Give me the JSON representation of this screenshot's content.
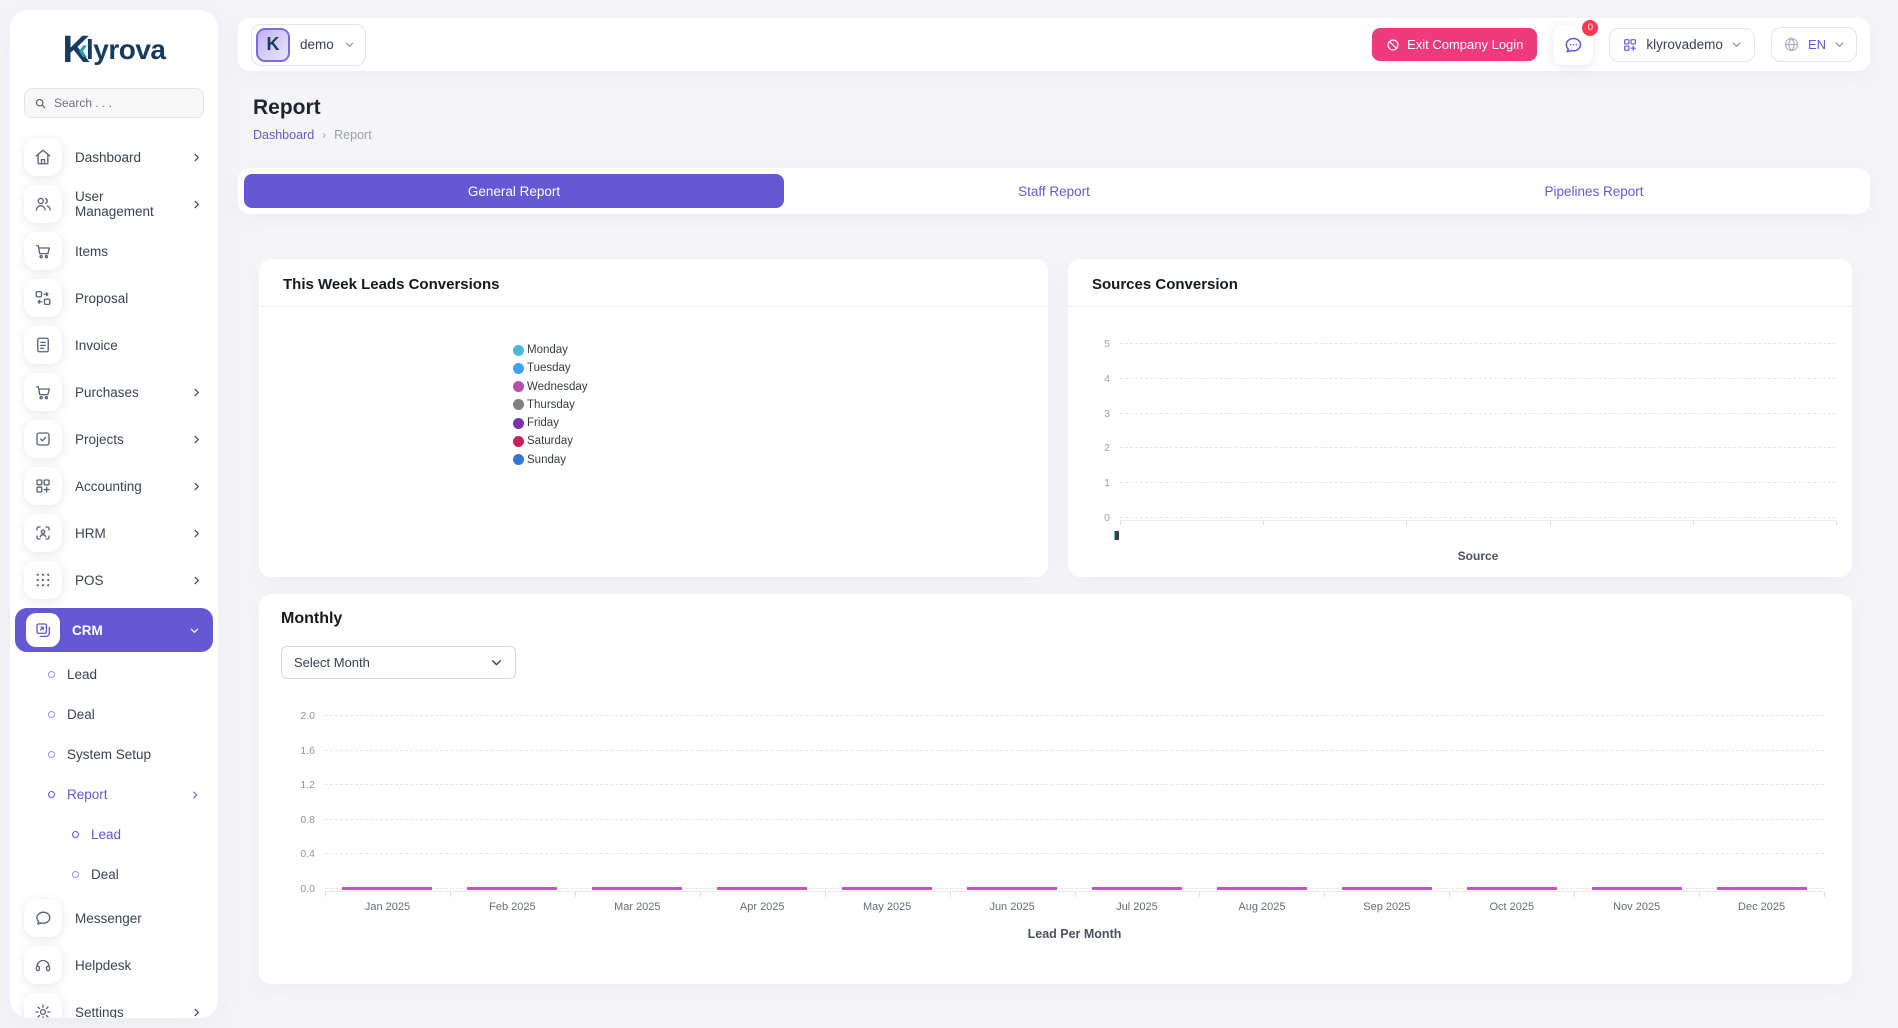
{
  "brand": {
    "name": "Klyrova",
    "mark": "K",
    "accent_glyph": "‹",
    "rest": "lyrova"
  },
  "search": {
    "placeholder": "Search . . ."
  },
  "sidebar": {
    "items": [
      {
        "label": "Dashboard",
        "icon": "home-icon",
        "chevron": true
      },
      {
        "label": "User Management",
        "icon": "users-icon",
        "chevron": true
      },
      {
        "label": "Items",
        "icon": "cart-icon",
        "chevron": false
      },
      {
        "label": "Proposal",
        "icon": "proposal-icon",
        "chevron": false
      },
      {
        "label": "Invoice",
        "icon": "invoice-icon",
        "chevron": false
      },
      {
        "label": "Purchases",
        "icon": "cart-icon",
        "chevron": true
      },
      {
        "label": "Projects",
        "icon": "check-square-icon",
        "chevron": true
      },
      {
        "label": "Accounting",
        "icon": "grid-plus-icon",
        "chevron": true
      },
      {
        "label": "HRM",
        "icon": "scan-user-icon",
        "chevron": true
      },
      {
        "label": "POS",
        "icon": "dots-grid-icon",
        "chevron": true
      },
      {
        "label": "CRM",
        "icon": "crm-icon",
        "chevron": "down",
        "active": true
      }
    ],
    "crm_children": [
      {
        "label": "Lead",
        "active": false
      },
      {
        "label": "Deal",
        "active": false
      },
      {
        "label": "System Setup",
        "active": false
      },
      {
        "label": "Report",
        "active": true,
        "chevron": true
      }
    ],
    "report_children": [
      {
        "label": "Lead",
        "active": true
      },
      {
        "label": "Deal",
        "active": false
      }
    ],
    "bottom_items": [
      {
        "label": "Messenger",
        "icon": "chat-icon"
      },
      {
        "label": "Helpdesk",
        "icon": "headset-icon"
      },
      {
        "label": "Settings",
        "icon": "gear-icon",
        "chevron": true
      }
    ]
  },
  "header": {
    "company_name": "demo",
    "company_avatar_letter": "K",
    "exit_button_label": "Exit Company Login",
    "notification_badge": "0",
    "username": "klyrovademo",
    "language": "EN"
  },
  "page": {
    "title": "Report",
    "breadcrumb_home": "Dashboard",
    "breadcrumb_sep": "›",
    "breadcrumb_current": "Report"
  },
  "tabs": {
    "general": "General Report",
    "staff": "Staff Report",
    "pipelines": "Pipelines Report"
  },
  "cards": {
    "week": {
      "title": "This Week Leads Conversions"
    },
    "sources": {
      "title": "Sources Conversion"
    },
    "monthly": {
      "title": "Monthly",
      "select_value": "Select Month"
    }
  },
  "colors": {
    "primary": "#6458d4",
    "danger_pink": "#ef3a7c",
    "badge_red": "#fc3a52",
    "bar_magenta": "#c355be"
  },
  "chart_data": [
    {
      "id": "this-week-leads-conversions",
      "type": "pie",
      "title": "This Week Leads Conversions",
      "labels": [
        "Monday",
        "Tuesday",
        "Wednesday",
        "Thursday",
        "Friday",
        "Saturday",
        "Sunday"
      ],
      "values": [
        0,
        0,
        0,
        0,
        0,
        0,
        0
      ],
      "colors": [
        "#4fb6d6",
        "#3da2f4",
        "#b84fae",
        "#7f7f7f",
        "#7c33a8",
        "#c42160",
        "#3077d4"
      ],
      "legend_position": "center"
    },
    {
      "id": "sources-conversion",
      "type": "bar",
      "title": "Sources Conversion",
      "xlabel": "Source",
      "ylabel": "",
      "ylim": [
        0,
        5
      ],
      "yticks": [
        "5",
        "4",
        "3",
        "2",
        "1",
        "0"
      ],
      "x_segments": 5,
      "x_tick_glyph": "▮",
      "grid": "dashed-horizontal",
      "categories": [],
      "values": []
    },
    {
      "id": "lead-per-month",
      "type": "bar",
      "title": "Monthly",
      "xlabel": "Lead Per Month",
      "ylabel": "",
      "ylim": [
        0,
        2
      ],
      "yticks": [
        "2.0",
        "1.6",
        "1.2",
        "0.8",
        "0.4",
        "0.0"
      ],
      "categories": [
        "Jan 2025",
        "Feb 2025",
        "Mar 2025",
        "Apr 2025",
        "May 2025",
        "Jun 2025",
        "Jul 2025",
        "Aug 2025",
        "Sep 2025",
        "Oct 2025",
        "Nov 2025",
        "Dec 2025"
      ],
      "values": [
        0,
        0,
        0,
        0,
        0,
        0,
        0,
        0,
        0,
        0,
        0,
        0
      ],
      "bar_color": "#c355be",
      "grid": "dashed-horizontal"
    }
  ]
}
